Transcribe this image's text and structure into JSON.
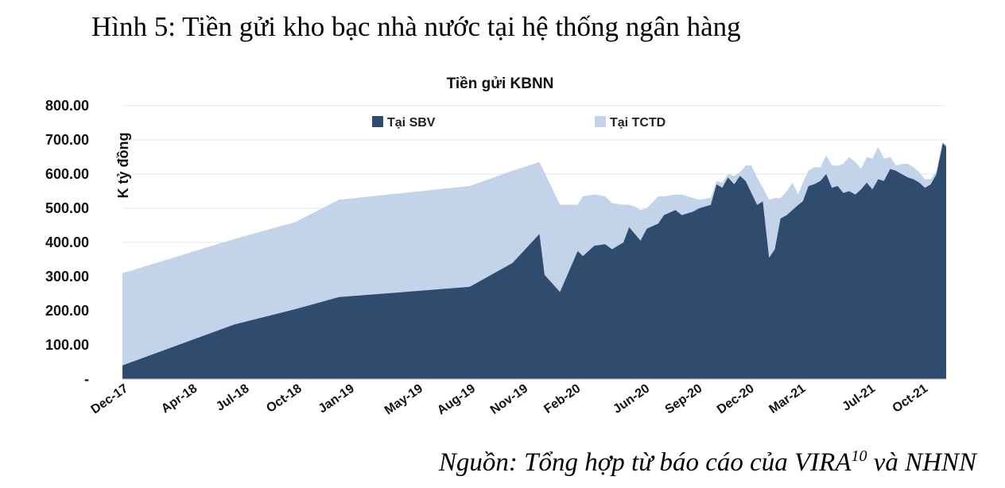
{
  "figure": {
    "title": "Hình 5: Tiền gửi kho bạc nhà nước tại hệ thống ngân hàng",
    "source_prefix": "Nguồn: Tổng hợp từ báo cáo của VIRA",
    "source_sup": "10",
    "source_suffix": " và NHNN"
  },
  "chart_data": {
    "type": "area",
    "stacked": true,
    "title": "Tiền gửi KBNN",
    "ylabel": "K tỷ đồng",
    "xlabel": "",
    "ylim": [
      0,
      800
    ],
    "yticks": [
      0,
      100,
      200,
      300,
      400,
      500,
      600,
      700,
      800
    ],
    "ytick_labels": [
      "-",
      "100.00",
      "200.00",
      "300.00",
      "400.00",
      "500.00",
      "600.00",
      "700.00",
      "800.00"
    ],
    "x_tick_labels": [
      "Dec-17",
      "Apr-18",
      "Jul-18",
      "Oct-18",
      "Jan-19",
      "May-19",
      "Aug-19",
      "Nov-19",
      "Feb-20",
      "Jun-20",
      "Sep-20",
      "Dec-20",
      "Mar-21",
      "Jul-21",
      "Oct-21"
    ],
    "x_tick_dates": [
      "2017-12-01",
      "2018-04-01",
      "2018-07-01",
      "2018-10-01",
      "2019-01-01",
      "2019-05-01",
      "2019-08-01",
      "2019-11-01",
      "2020-02-01",
      "2020-06-01",
      "2020-09-01",
      "2020-12-01",
      "2021-03-01",
      "2021-07-01",
      "2021-10-01"
    ],
    "grid": true,
    "legend_position": "top",
    "series": [
      {
        "name": "Tại SBV",
        "color": "#2f4b6e",
        "points": [
          [
            "2017-12-01",
            40
          ],
          [
            "2018-06-15",
            160
          ],
          [
            "2018-09-30",
            205
          ],
          [
            "2018-12-15",
            240
          ],
          [
            "2019-08-01",
            270
          ],
          [
            "2019-10-15",
            340
          ],
          [
            "2019-12-01",
            425
          ],
          [
            "2019-12-10",
            305
          ],
          [
            "2020-01-06",
            255
          ],
          [
            "2020-02-06",
            375
          ],
          [
            "2020-02-15",
            360
          ],
          [
            "2020-03-06",
            390
          ],
          [
            "2020-03-25",
            395
          ],
          [
            "2020-04-06",
            380
          ],
          [
            "2020-04-26",
            400
          ],
          [
            "2020-05-06",
            445
          ],
          [
            "2020-05-16",
            425
          ],
          [
            "2020-05-26",
            405
          ],
          [
            "2020-06-06",
            440
          ],
          [
            "2020-06-26",
            455
          ],
          [
            "2020-07-06",
            480
          ],
          [
            "2020-07-26",
            495
          ],
          [
            "2020-08-06",
            480
          ],
          [
            "2020-08-26",
            490
          ],
          [
            "2020-09-06",
            500
          ],
          [
            "2020-09-26",
            510
          ],
          [
            "2020-10-06",
            570
          ],
          [
            "2020-10-16",
            560
          ],
          [
            "2020-10-26",
            590
          ],
          [
            "2020-11-06",
            570
          ],
          [
            "2020-11-16",
            595
          ],
          [
            "2020-11-26",
            580
          ],
          [
            "2020-12-06",
            545
          ],
          [
            "2020-12-16",
            510
          ],
          [
            "2020-12-26",
            520
          ],
          [
            "2021-01-06",
            355
          ],
          [
            "2021-01-16",
            380
          ],
          [
            "2021-01-26",
            470
          ],
          [
            "2021-02-06",
            480
          ],
          [
            "2021-02-16",
            495
          ],
          [
            "2021-02-26",
            510
          ],
          [
            "2021-03-06",
            520
          ],
          [
            "2021-03-16",
            565
          ],
          [
            "2021-03-26",
            570
          ],
          [
            "2021-04-06",
            580
          ],
          [
            "2021-04-16",
            600
          ],
          [
            "2021-04-26",
            560
          ],
          [
            "2021-05-06",
            565
          ],
          [
            "2021-05-16",
            545
          ],
          [
            "2021-05-26",
            550
          ],
          [
            "2021-06-06",
            540
          ],
          [
            "2021-06-16",
            555
          ],
          [
            "2021-06-26",
            575
          ],
          [
            "2021-07-06",
            555
          ],
          [
            "2021-07-16",
            585
          ],
          [
            "2021-07-26",
            580
          ],
          [
            "2021-08-06",
            615
          ],
          [
            "2021-08-16",
            610
          ],
          [
            "2021-08-26",
            600
          ],
          [
            "2021-09-06",
            590
          ],
          [
            "2021-09-16",
            585
          ],
          [
            "2021-09-26",
            575
          ],
          [
            "2021-10-06",
            560
          ],
          [
            "2021-10-16",
            570
          ],
          [
            "2021-10-26",
            600
          ],
          [
            "2021-11-06",
            690
          ],
          [
            "2021-11-12",
            680
          ]
        ]
      },
      {
        "name": "Tại TCTD",
        "color": "#c3d4ea",
        "points": [
          [
            "2017-12-01",
            270
          ],
          [
            "2018-06-15",
            250
          ],
          [
            "2018-09-30",
            255
          ],
          [
            "2018-12-15",
            285
          ],
          [
            "2019-08-01",
            295
          ],
          [
            "2019-10-15",
            270
          ],
          [
            "2019-12-01",
            210
          ],
          [
            "2019-12-10",
            300
          ],
          [
            "2020-01-06",
            255
          ],
          [
            "2020-02-06",
            135
          ],
          [
            "2020-02-15",
            175
          ],
          [
            "2020-03-06",
            150
          ],
          [
            "2020-03-25",
            140
          ],
          [
            "2020-04-06",
            135
          ],
          [
            "2020-04-26",
            110
          ],
          [
            "2020-05-06",
            65
          ],
          [
            "2020-05-16",
            80
          ],
          [
            "2020-05-26",
            90
          ],
          [
            "2020-06-06",
            60
          ],
          [
            "2020-06-26",
            80
          ],
          [
            "2020-07-06",
            55
          ],
          [
            "2020-07-26",
            45
          ],
          [
            "2020-08-06",
            60
          ],
          [
            "2020-08-26",
            40
          ],
          [
            "2020-09-06",
            25
          ],
          [
            "2020-09-26",
            20
          ],
          [
            "2020-10-06",
            10
          ],
          [
            "2020-10-16",
            15
          ],
          [
            "2020-10-26",
            10
          ],
          [
            "2020-11-06",
            25
          ],
          [
            "2020-11-16",
            10
          ],
          [
            "2020-11-26",
            45
          ],
          [
            "2020-12-06",
            80
          ],
          [
            "2020-12-16",
            80
          ],
          [
            "2020-12-26",
            40
          ],
          [
            "2021-01-06",
            170
          ],
          [
            "2021-01-16",
            150
          ],
          [
            "2021-01-26",
            60
          ],
          [
            "2021-02-06",
            70
          ],
          [
            "2021-02-16",
            80
          ],
          [
            "2021-02-26",
            30
          ],
          [
            "2021-03-06",
            55
          ],
          [
            "2021-03-16",
            45
          ],
          [
            "2021-03-26",
            50
          ],
          [
            "2021-04-06",
            40
          ],
          [
            "2021-04-16",
            55
          ],
          [
            "2021-04-26",
            65
          ],
          [
            "2021-05-06",
            60
          ],
          [
            "2021-05-16",
            85
          ],
          [
            "2021-05-26",
            100
          ],
          [
            "2021-06-06",
            95
          ],
          [
            "2021-06-16",
            60
          ],
          [
            "2021-06-26",
            75
          ],
          [
            "2021-07-06",
            90
          ],
          [
            "2021-07-16",
            95
          ],
          [
            "2021-07-26",
            65
          ],
          [
            "2021-08-06",
            35
          ],
          [
            "2021-08-16",
            15
          ],
          [
            "2021-08-26",
            30
          ],
          [
            "2021-09-06",
            40
          ],
          [
            "2021-09-16",
            35
          ],
          [
            "2021-09-26",
            30
          ],
          [
            "2021-10-06",
            25
          ],
          [
            "2021-10-16",
            15
          ],
          [
            "2021-10-26",
            10
          ],
          [
            "2021-11-06",
            5
          ],
          [
            "2021-11-12",
            5
          ]
        ]
      }
    ]
  }
}
